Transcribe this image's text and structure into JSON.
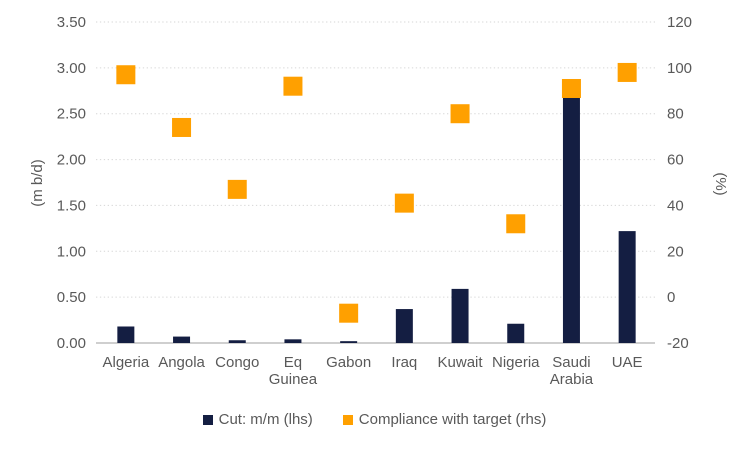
{
  "chart_data": {
    "type": "combo",
    "title": "",
    "categories": [
      "Algeria",
      "Angola",
      "Congo",
      "Eq Guinea",
      "Gabon",
      "Iraq",
      "Kuwait",
      "Nigeria",
      "Saudi Arabia",
      "UAE"
    ],
    "series": [
      {
        "name": "Cut: m/m (lhs)",
        "type": "bar",
        "axis": "left",
        "color": "#141E42",
        "values": [
          0.18,
          0.07,
          0.03,
          0.04,
          0.02,
          0.37,
          0.59,
          0.21,
          2.68,
          1.22
        ]
      },
      {
        "name": "Compliance with target (rhs)",
        "type": "square-marker",
        "axis": "right",
        "color": "#FFA000",
        "values": [
          97,
          74,
          47,
          92,
          -7,
          41,
          80,
          32,
          91,
          98
        ]
      }
    ],
    "left_axis": {
      "label": "(m b/d)",
      "min": 0,
      "max": 3.5,
      "step": 0.5,
      "tick_labels": [
        "0.00",
        "0.50",
        "1.00",
        "1.50",
        "2.00",
        "2.50",
        "3.00",
        "3.50"
      ]
    },
    "right_axis": {
      "label": "(%)",
      "min": -20,
      "max": 120,
      "step": 20,
      "tick_labels": [
        "-20",
        "0",
        "20",
        "40",
        "60",
        "80",
        "100",
        "120"
      ]
    },
    "legend_position": "bottom",
    "grid": "horizontal-dotted"
  },
  "styles": {
    "text_color": "#595959",
    "gridline_color": "#D6D6D6",
    "axisline_color": "#BFBFBF",
    "background": "#FFFFFF"
  }
}
